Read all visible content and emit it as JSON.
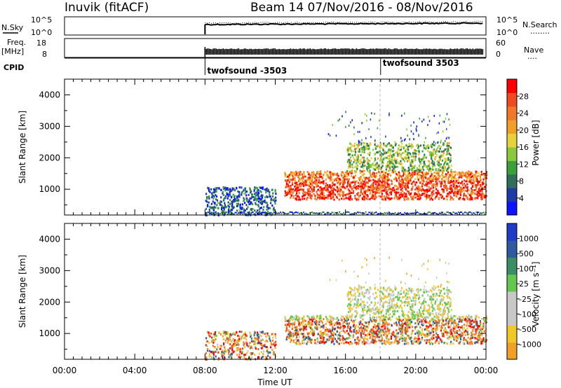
{
  "header": {
    "station": "Inuvik (fitACF)",
    "beam_info": "Beam 14  07/Nov/2016 - 08/Nov/2016"
  },
  "nsky_panel": {
    "left_label": "N.Sky",
    "left_ticks": [
      "10^5",
      "10^0"
    ],
    "right_label": "N.Search",
    "right_ticks": [
      "10^5",
      "10^0"
    ],
    "right_legend_line": "........"
  },
  "freq_panel": {
    "left_label_1": "Freq.",
    "left_label_2": "[MHz]",
    "left_ticks": [
      "18",
      "8"
    ],
    "right_label": "Nave",
    "right_ticks": [
      "60",
      "0"
    ],
    "right_legend_line": "...."
  },
  "cpid": {
    "label": "CPID",
    "events": [
      {
        "time_h": 8.0,
        "text": "twofsound -3503"
      },
      {
        "time_h": 18.0,
        "text": "twofsound 3503"
      }
    ]
  },
  "x_axis": {
    "label": "Time UT",
    "ticks": [
      "00:00",
      "04:00",
      "08:00",
      "12:00",
      "16:00",
      "20:00",
      "00:00"
    ],
    "range_h": [
      0,
      24
    ]
  },
  "power_panel": {
    "ylabel": "Slant Range [km]",
    "yticks": [
      "1000",
      "2000",
      "3000",
      "4000"
    ],
    "colorbar_label": "Power [dB]",
    "colorbar_ticks": [
      "4",
      "8",
      "12",
      "16",
      "20",
      "24",
      "28"
    ],
    "colors": [
      "#0a14ff",
      "#1d3aa8",
      "#2f6e5a",
      "#3aa03c",
      "#8cc83c",
      "#e6d23c",
      "#f0a028",
      "#f07828",
      "#f04b1e",
      "#ff0000"
    ]
  },
  "velocity_panel": {
    "ylabel": "Slant Range [km]",
    "yticks": [
      "1000",
      "2000",
      "3000",
      "4000"
    ],
    "colorbar_label": "Velocity [m s⁻¹]",
    "colorbar_ticks": [
      "1000",
      "500",
      "100",
      "25",
      "-25",
      "-100",
      "-500",
      "-1000"
    ],
    "colors": [
      "#1e3cc8",
      "#2d5aa0",
      "#3c8c64",
      "#64c850",
      "#c8c8c8",
      "#c8c8c8",
      "#f0c828",
      "#f0a028",
      "#f07828",
      "#f04b1e",
      "#ff0000"
    ]
  },
  "chart_data": {
    "type": "heatmap",
    "x_range_h": [
      0,
      24
    ],
    "y_range_km": [
      180,
      4500
    ],
    "ylabel": "Slant Range [km]",
    "xlabel": "Time UT",
    "power_range_db": [
      0,
      32
    ],
    "velocity_range_ms": [
      -1500,
      1500
    ],
    "data_start_h": 8.0,
    "scatter_regions": [
      {
        "label": "Low-range scatter 08:00-12:00",
        "t_start_h": 8.0,
        "t_end_h": 12.0,
        "range_km": [
          200,
          1100
        ],
        "typical_power_db": 6
      },
      {
        "label": "Main band 12:30-24:00",
        "t_start_h": 12.5,
        "t_end_h": 24.0,
        "range_km": [
          700,
          1600
        ],
        "typical_power_db": 24
      },
      {
        "label": "Upper scatter 16:00-22:00",
        "t_start_h": 16.0,
        "t_end_h": 22.0,
        "range_km": [
          1600,
          2500
        ],
        "typical_power_db": 14
      }
    ]
  }
}
